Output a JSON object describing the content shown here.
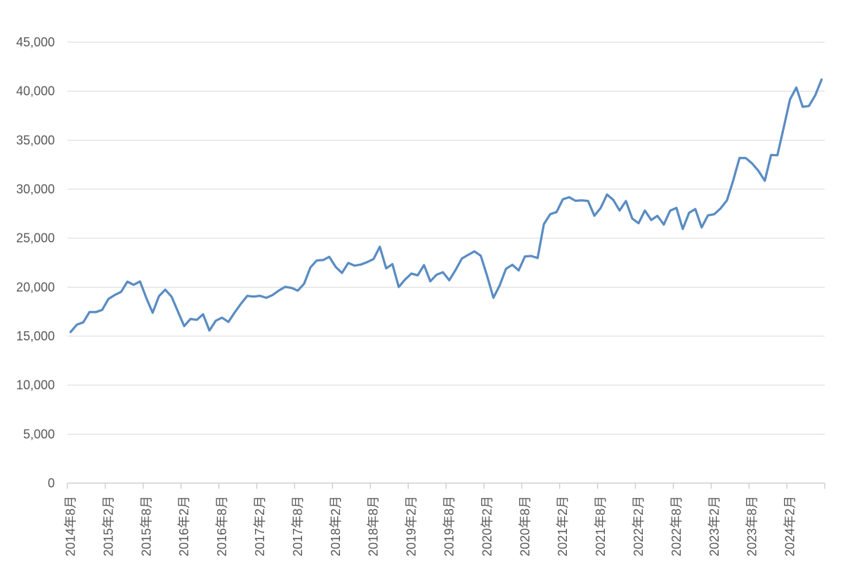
{
  "chart_data": {
    "type": "line",
    "title": "",
    "legend": "none",
    "grid": true,
    "ylim": [
      0,
      45000
    ],
    "y_tick_interval": 5000,
    "y_tick_labels": [
      "0",
      "5,000",
      "10,000",
      "15,000",
      "20,000",
      "25,000",
      "30,000",
      "35,000",
      "40,000",
      "45,000"
    ],
    "x_tick_labels": [
      "2014年8月",
      "2015年2月",
      "2015年8月",
      "2016年2月",
      "2016年8月",
      "2017年2月",
      "2017年8月",
      "2018年2月",
      "2018年8月",
      "2019年2月",
      "2019年8月",
      "2020年2月",
      "2020年8月",
      "2021年2月",
      "2021年8月",
      "2022年2月",
      "2022年8月",
      "2023年2月",
      "2023年8月",
      "2024年2月"
    ],
    "x_label_interval_months": 6,
    "values": [
      15425,
      16174,
      16414,
      17460,
      17451,
      17674,
      18798,
      19207,
      19520,
      20563,
      20236,
      20585,
      18890,
      17388,
      19083,
      19747,
      19034,
      17518,
      16027,
      16759,
      16666,
      17235,
      15576,
      16569,
      16887,
      16450,
      17425,
      18308,
      19114,
      19041,
      19119,
      18909,
      19197,
      19651,
      20033,
      19925,
      19646,
      20356,
      22012,
      22725,
      22765,
      23098,
      22068,
      21454,
      22468,
      22202,
      22305,
      22554,
      22865,
      24120,
      21920,
      22351,
      20015,
      20773,
      21385,
      21206,
      22259,
      20601,
      21276,
      21522,
      20704,
      21756,
      22927,
      23294,
      23657,
      23205,
      21143,
      18917,
      20194,
      21878,
      22288,
      21710,
      23140,
      23185,
      22977,
      26434,
      27444,
      27663,
      28966,
      29179,
      28813,
      28860,
      28792,
      27284,
      28090,
      29453,
      28893,
      27822,
      28792,
      27002,
      26527,
      27821,
      26848,
      27280,
      26393,
      27801,
      28092,
      25937,
      27587,
      27969,
      26095,
      27327,
      27446,
      28041,
      28856,
      30887,
      33189,
      33172,
      32619,
      31858,
      30859,
      33486,
      33464,
      36287,
      39166,
      40369,
      38406,
      38487,
      39583,
      41190
    ],
    "colors": {
      "line": "#5A8CC2",
      "gridline": "#D9D9D9",
      "axis": "#C6C6C6",
      "label": "#595959",
      "background": "#FFFFFF"
    }
  }
}
